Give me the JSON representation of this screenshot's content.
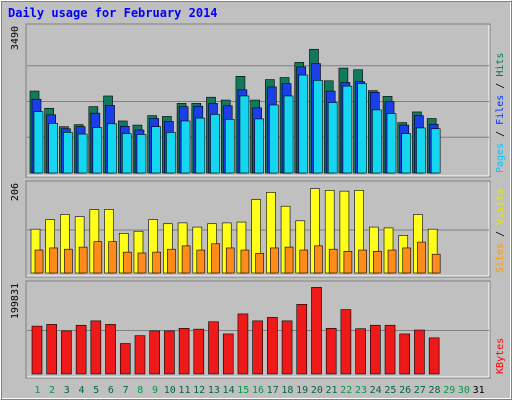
{
  "chart_data": {
    "type": "bar",
    "title": "Daily usage for February 2014",
    "x": [
      "1",
      "2",
      "3",
      "4",
      "5",
      "6",
      "7",
      "8",
      "9",
      "10",
      "11",
      "12",
      "13",
      "14",
      "15",
      "16",
      "17",
      "18",
      "19",
      "20",
      "21",
      "22",
      "23",
      "24",
      "25",
      "26",
      "27",
      "28",
      "29",
      "30",
      "31"
    ],
    "weekend_days": [
      "1",
      "2",
      "8",
      "9",
      "15",
      "16",
      "22",
      "23",
      "29",
      "30"
    ],
    "panels": [
      {
        "name": "hits-files-pages",
        "ymax_label": "3490",
        "ymax": 3490,
        "side_labels": [
          {
            "text": "Pages",
            "color": "#00c8ff"
          },
          {
            "text": " / ",
            "color": "#000000"
          },
          {
            "text": "Files",
            "color": "#0033ff"
          },
          {
            "text": " / ",
            "color": "#000000"
          },
          {
            "text": "Hits",
            "color": "#007a5a"
          }
        ],
        "series": [
          {
            "name": "Hits",
            "color": "#127a5c",
            "values": [
              2000,
              1580,
              1130,
              1180,
              1620,
              1880,
              1270,
              1170,
              1400,
              1380,
              1700,
              1700,
              1850,
              1780,
              2360,
              1780,
              2280,
              2330,
              2700,
              3020,
              2250,
              2560,
              2520,
              2010,
              1870,
              1230,
              1490,
              1330,
              0,
              0,
              0
            ]
          },
          {
            "name": "Files",
            "color": "#1a3fe8",
            "values": [
              1800,
              1420,
              1080,
              1130,
              1460,
              1650,
              1140,
              1050,
              1330,
              1260,
              1620,
              1630,
              1700,
              1640,
              2030,
              1590,
              2100,
              2180,
              2590,
              2670,
              2000,
              2210,
              2230,
              1970,
              1740,
              1170,
              1400,
              1190,
              0,
              0,
              0
            ]
          },
          {
            "name": "Pages",
            "color": "#14d6f0",
            "values": [
              1500,
              1210,
              990,
              950,
              1110,
              1200,
              960,
              940,
              1130,
              990,
              1270,
              1340,
              1430,
              1310,
              1880,
              1320,
              1660,
              1880,
              2390,
              2260,
              1720,
              2120,
              2180,
              1540,
              1450,
              960,
              1100,
              1080,
              0,
              0,
              0
            ]
          }
        ]
      },
      {
        "name": "visits-sites",
        "ymax_label": "206",
        "ymax": 206,
        "side_labels": [
          {
            "text": "Sites",
            "color": "#ff9900"
          },
          {
            "text": " / ",
            "color": "#000000"
          },
          {
            "text": "Visits",
            "color": "#e8e800"
          }
        ],
        "series": [
          {
            "name": "Visits",
            "color": "#ffff1a",
            "values": [
              105,
              128,
              140,
              135,
              152,
              152,
              95,
              100,
              128,
              118,
              120,
              110,
              118,
              120,
              122,
              176,
              193,
              160,
              125,
              202,
              198,
              196,
              198,
              110,
              108,
              90,
              140,
              105,
              0,
              0,
              0
            ]
          },
          {
            "name": "Sites",
            "color": "#ff8c1a",
            "values": [
              55,
              60,
              57,
              62,
              75,
              75,
              50,
              48,
              50,
              57,
              65,
              55,
              70,
              60,
              55,
              47,
              60,
              62,
              55,
              65,
              57,
              52,
              55,
              52,
              55,
              60,
              74,
              45,
              0,
              0,
              0
            ]
          }
        ]
      },
      {
        "name": "kbytes",
        "ymax_label": "199831",
        "ymax": 199831,
        "side_labels": [
          {
            "text": "KBytes",
            "color": "#ff0000"
          }
        ],
        "series": [
          {
            "name": "KBytes",
            "color": "#ee1a1a",
            "values": [
              110000,
              114000,
              99000,
              112000,
              122000,
              114000,
              70000,
              88000,
              99000,
              99000,
              105000,
              103000,
              120000,
              92000,
              138000,
              122000,
              130000,
              122000,
              160000,
              199000,
              105000,
              148000,
              104000,
              112000,
              112000,
              92000,
              101000,
              83000,
              0,
              0,
              0
            ]
          }
        ]
      }
    ],
    "colors": {
      "panel_bg": "#c0c0c0",
      "bevel_light": "#ffffff",
      "bevel_dark": "#808080",
      "weekday_tick": "#006644",
      "weekend_tick": "#00994c",
      "future_tick": "#000000",
      "gridline": "#808080"
    }
  }
}
